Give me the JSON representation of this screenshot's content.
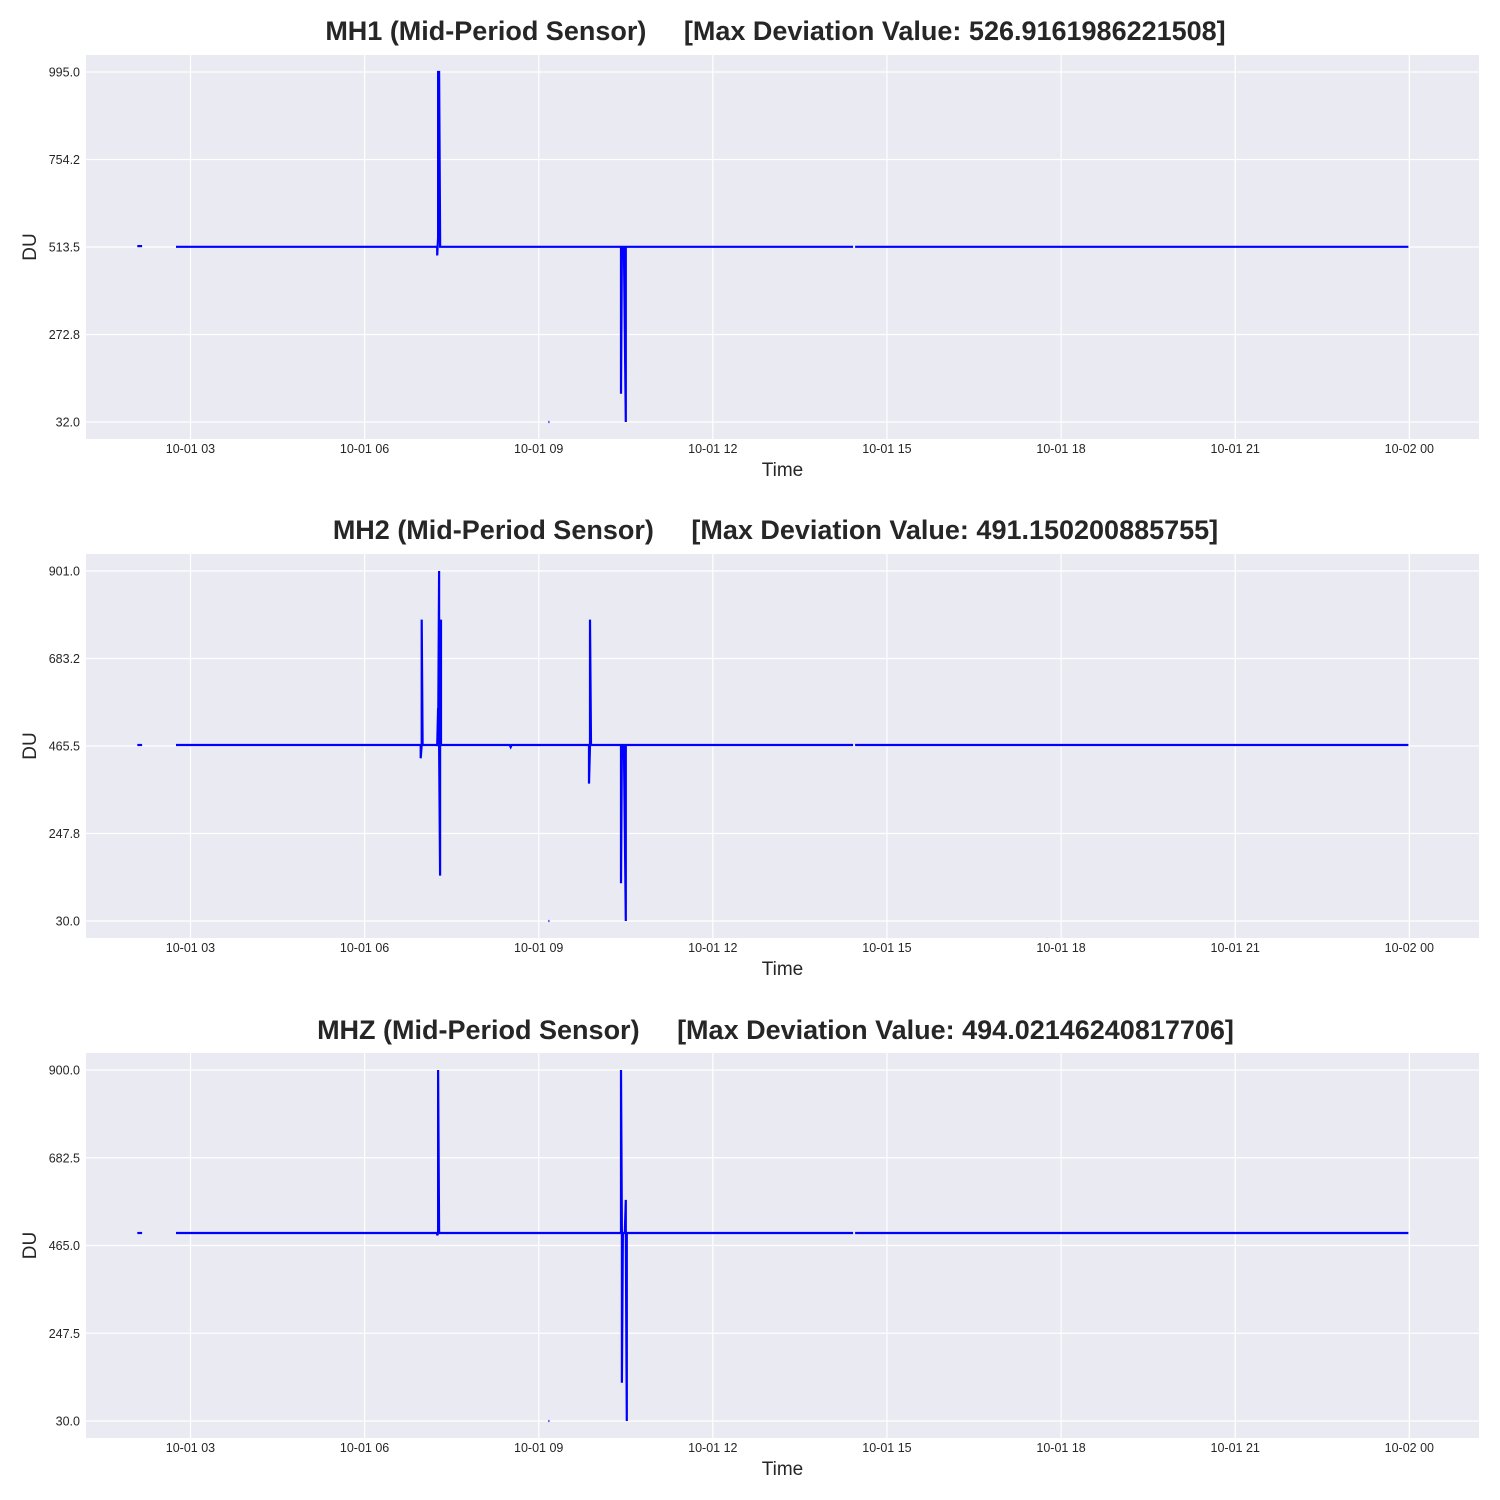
{
  "chart_data": [
    {
      "type": "line",
      "title": "MH1 (Mid-Period Sensor)     [Max Deviation Value: 526.9161986221508]",
      "xlabel": "Time",
      "ylabel": "DU",
      "xlim": [
        "2024-10-01 01:12",
        "2024-10-02 01:12"
      ],
      "ylim": [
        32.0,
        995.0
      ],
      "yticks": [
        32.0,
        272.8,
        513.5,
        754.2,
        995.0
      ],
      "ytick_labels": [
        "32.0",
        "272.8",
        "513.5",
        "754.2",
        "995.0"
      ],
      "xticks": [
        "2024-10-01 03:00",
        "2024-10-01 06:00",
        "2024-10-01 09:00",
        "2024-10-01 12:00",
        "2024-10-01 15:00",
        "2024-10-01 18:00",
        "2024-10-01 21:00",
        "2024-10-02 00:00"
      ],
      "xtick_labels": [
        "10-01 03",
        "10-01 06",
        "10-01 09",
        "10-01 12",
        "10-01 15",
        "10-01 18",
        "10-01 21",
        "10-02 00"
      ],
      "grid": true,
      "color": "#0000ff",
      "series": [
        {
          "x": [
            "2024-10-01 02:05",
            "2024-10-01 02:10"
          ],
          "y": [
            516,
            516
          ]
        },
        {
          "x": [
            "2024-10-01 02:45",
            "2024-10-01 07:15",
            "2024-10-01 07:15",
            "2024-10-01 07:16",
            "2024-10-01 07:16",
            "2024-10-01 07:17",
            "2024-10-01 07:18",
            "2024-10-01 07:18",
            "2024-10-01 07:19",
            "2024-10-01 10:25",
            "2024-10-01 10:25",
            "2024-10-01 10:26",
            "2024-10-01 10:28",
            "2024-10-01 10:30",
            "2024-10-01 10:30",
            "2024-10-01 10:31",
            "2024-10-01 14:25"
          ],
          "y": [
            514,
            514,
            490,
            540,
            995,
            995,
            540,
            514,
            514,
            514,
            110,
            514,
            514,
            32,
            514,
            514,
            514
          ]
        },
        {
          "x": [
            "2024-10-01 14:27",
            "2024-10-01 23:59"
          ],
          "y": [
            514,
            514
          ]
        },
        {
          "x": [
            "2024-10-01 09:10",
            "2024-10-01 09:11"
          ],
          "y": [
            32,
            32
          ]
        }
      ]
    },
    {
      "type": "line",
      "title": "MH2 (Mid-Period Sensor)     [Max Deviation Value: 491.150200885755]",
      "xlabel": "Time",
      "ylabel": "DU",
      "xlim": [
        "2024-10-01 01:12",
        "2024-10-02 01:12"
      ],
      "ylim": [
        30.0,
        901.0
      ],
      "yticks": [
        30.0,
        247.8,
        465.5,
        683.2,
        901.0
      ],
      "ytick_labels": [
        "30.0",
        "247.8",
        "465.5",
        "683.2",
        "901.0"
      ],
      "xticks": [
        "2024-10-01 03:00",
        "2024-10-01 06:00",
        "2024-10-01 09:00",
        "2024-10-01 12:00",
        "2024-10-01 15:00",
        "2024-10-01 18:00",
        "2024-10-01 21:00",
        "2024-10-02 00:00"
      ],
      "xtick_labels": [
        "10-01 03",
        "10-01 06",
        "10-01 09",
        "10-01 12",
        "10-01 15",
        "10-01 18",
        "10-01 21",
        "10-02 00"
      ],
      "grid": true,
      "color": "#0000ff",
      "series": [
        {
          "x": [
            "2024-10-01 02:05",
            "2024-10-01 02:10"
          ],
          "y": [
            468,
            468
          ]
        },
        {
          "x": [
            "2024-10-01 02:45",
            "2024-10-01 06:58",
            "2024-10-01 06:58",
            "2024-10-01 06:59",
            "2024-10-01 06:59",
            "2024-10-01 07:00",
            "2024-10-01 07:15",
            "2024-10-01 07:15",
            "2024-10-01 07:16",
            "2024-10-01 07:16",
            "2024-10-01 07:17",
            "2024-10-01 07:17",
            "2024-10-01 07:18",
            "2024-10-01 07:18",
            "2024-10-01 07:19",
            "2024-10-01 07:19",
            "2024-10-01 07:20",
            "2024-10-01 08:30",
            "2024-10-01 08:31",
            "2024-10-01 08:32",
            "2024-10-01 09:52",
            "2024-10-01 09:52",
            "2024-10-01 09:53",
            "2024-10-01 09:53",
            "2024-10-01 09:54",
            "2024-10-01 10:25",
            "2024-10-01 10:25",
            "2024-10-01 10:26",
            "2024-10-01 10:28",
            "2024-10-01 10:30",
            "2024-10-01 10:30",
            "2024-10-01 10:31",
            "2024-10-01 14:25"
          ],
          "y": [
            468,
            468,
            435,
            468,
            780,
            468,
            468,
            465,
            560,
            468,
            901,
            468,
            143,
            468,
            780,
            468,
            468,
            468,
            463,
            468,
            468,
            372,
            468,
            780,
            468,
            468,
            124,
            468,
            468,
            30,
            468,
            468,
            468
          ]
        },
        {
          "x": [
            "2024-10-01 14:27",
            "2024-10-01 23:59"
          ],
          "y": [
            468,
            468
          ]
        },
        {
          "x": [
            "2024-10-01 09:10",
            "2024-10-01 09:11"
          ],
          "y": [
            30,
            30
          ]
        }
      ]
    },
    {
      "type": "line",
      "title": "MHZ (Mid-Period Sensor)     [Max Deviation Value: 494.02146240817706]",
      "xlabel": "Time",
      "ylabel": "DU",
      "xlim": [
        "2024-10-01 01:12",
        "2024-10-02 01:12"
      ],
      "ylim": [
        30.0,
        900.0
      ],
      "yticks": [
        30.0,
        247.5,
        465.0,
        682.5,
        900.0
      ],
      "ytick_labels": [
        "30.0",
        "247.5",
        "465.0",
        "682.5",
        "900.0"
      ],
      "xticks": [
        "2024-10-01 03:00",
        "2024-10-01 06:00",
        "2024-10-01 09:00",
        "2024-10-01 12:00",
        "2024-10-01 15:00",
        "2024-10-01 18:00",
        "2024-10-01 21:00",
        "2024-10-02 00:00"
      ],
      "xtick_labels": [
        "10-01 03",
        "10-01 06",
        "10-01 09",
        "10-01 12",
        "10-01 15",
        "10-01 18",
        "10-01 21",
        "10-02 00"
      ],
      "grid": true,
      "color": "#0000ff",
      "series": [
        {
          "x": [
            "2024-10-01 02:05",
            "2024-10-01 02:10"
          ],
          "y": [
            496,
            496
          ]
        },
        {
          "x": [
            "2024-10-01 02:45",
            "2024-10-01 07:15",
            "2024-10-01 07:15",
            "2024-10-01 07:16",
            "2024-10-01 07:16",
            "2024-10-01 07:17",
            "2024-10-01 07:18",
            "2024-10-01 10:25",
            "2024-10-01 10:25",
            "2024-10-01 10:26",
            "2024-10-01 10:26",
            "2024-10-01 10:27",
            "2024-10-01 10:29",
            "2024-10-01 10:30",
            "2024-10-01 10:30",
            "2024-10-01 10:31",
            "2024-10-01 10:31",
            "2024-10-01 10:32",
            "2024-10-01 14:25"
          ],
          "y": [
            496,
            496,
            490,
            496,
            900,
            496,
            496,
            496,
            900,
            496,
            125,
            496,
            496,
            578,
            496,
            30,
            496,
            496,
            496
          ]
        },
        {
          "x": [
            "2024-10-01 14:27",
            "2024-10-01 23:59"
          ],
          "y": [
            496,
            496
          ]
        },
        {
          "x": [
            "2024-10-01 09:10",
            "2024-10-01 09:11"
          ],
          "y": [
            30,
            30
          ]
        }
      ]
    }
  ]
}
